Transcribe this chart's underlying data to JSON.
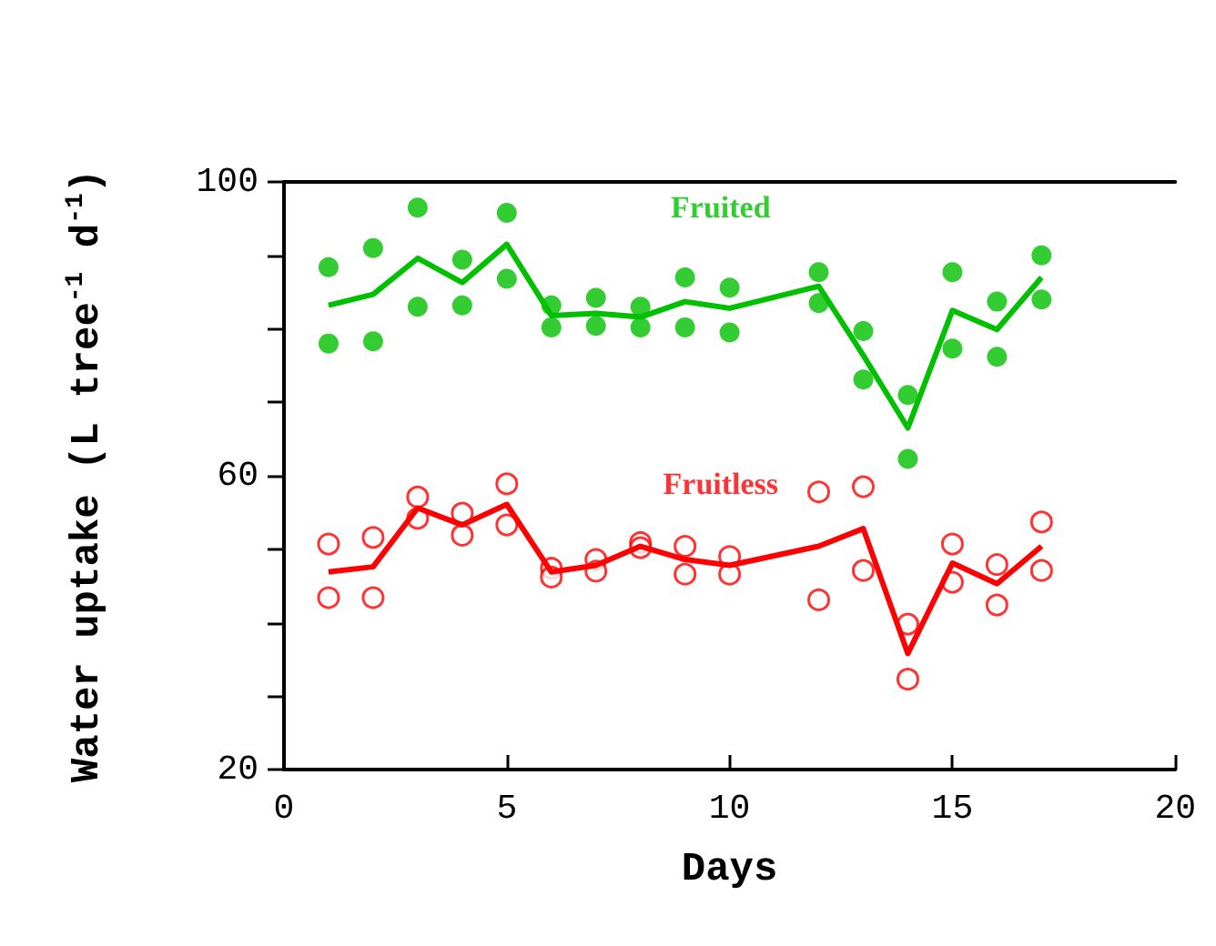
{
  "chart_data": {
    "type": "scatter",
    "xlabel": "Days",
    "ylabel": "Water uptake (L tree$^{-1}$ d$^{-1}$)",
    "xlim": [
      0,
      20
    ],
    "xticks": [
      0,
      5,
      10,
      15,
      20
    ],
    "ylim": [
      20,
      100
    ],
    "yticks": [
      20,
      {
        "value": 30,
        "label": null
      },
      {
        "value": 40,
        "label": null
      },
      {
        "value": 50,
        "label": null
      },
      60,
      {
        "value": 70,
        "label": null
      },
      {
        "value": 80,
        "label": null
      },
      {
        "value": 90,
        "label": null
      },
      100
    ],
    "grid": false,
    "legend": false,
    "marker": "circle",
    "series": [
      {
        "name": "Fruited",
        "color": "#00c000",
        "x": [
          1,
          1,
          2,
          2,
          3,
          3,
          4,
          4,
          5,
          5,
          6,
          6,
          7,
          7,
          8,
          8,
          9,
          9,
          10,
          10,
          12,
          12,
          13,
          13,
          14,
          14,
          15,
          15,
          16,
          16,
          17,
          17
        ],
        "values": [
          88.4,
          78,
          91,
          78.3,
          96.5,
          83,
          89.4,
          83.2,
          95.8,
          86.8,
          83.2,
          80.2,
          84.2,
          80.4,
          83,
          80.2,
          87,
          80.2,
          85.6,
          79.5,
          87.7,
          83.5,
          79.7,
          73.1,
          71,
          62.3,
          87.7,
          77.3,
          83.7,
          76.2,
          90,
          84
        ]
      },
      {
        "type": "line",
        "color": "#00c000",
        "marker": "none",
        "x": [
          1,
          2,
          3,
          4,
          5,
          6,
          7,
          8,
          9,
          10,
          12,
          13,
          14,
          15,
          16,
          17
        ],
        "values": [
          83.2,
          84.7,
          89.6,
          86.3,
          91.5,
          81.8,
          82.1,
          81.6,
          83.7,
          82.8,
          85.8,
          76.4,
          66.5,
          82.5,
          79.9,
          87
        ]
      },
      {
        "name": "Fruitless",
        "color": "#ff0000",
        "x": [
          1,
          1,
          2,
          2,
          3,
          3,
          4,
          4,
          5,
          5,
          6,
          6,
          7,
          7,
          8,
          8,
          9,
          9,
          10,
          10,
          12,
          12,
          13,
          13,
          14,
          14,
          15,
          15,
          16,
          16,
          17,
          17
        ],
        "values": [
          50.7,
          43.4,
          51.6,
          43.4,
          57.1,
          54.2,
          54.9,
          51.9,
          58.9,
          53.3,
          47.4,
          46.2,
          48.6,
          47,
          50.9,
          50.2,
          50.4,
          46.6,
          49,
          46.6,
          57.8,
          43.1,
          58.5,
          47.1,
          39.8,
          32.3,
          50.7,
          45.5,
          47.9,
          42.4,
          53.7,
          47.1
        ]
      },
      {
        "type": "line",
        "color": "#ff0000",
        "marker": "none",
        "x": [
          1,
          2,
          3,
          4,
          5,
          6,
          7,
          8,
          9,
          10,
          12,
          13,
          14,
          15,
          16,
          17
        ],
        "values": [
          46.9,
          47.6,
          55.6,
          53.3,
          56.1,
          46.9,
          47.8,
          50.4,
          48.6,
          47.8,
          50.4,
          52.8,
          35.8,
          48.1,
          45.3,
          50.4
        ]
      }
    ]
  }
}
